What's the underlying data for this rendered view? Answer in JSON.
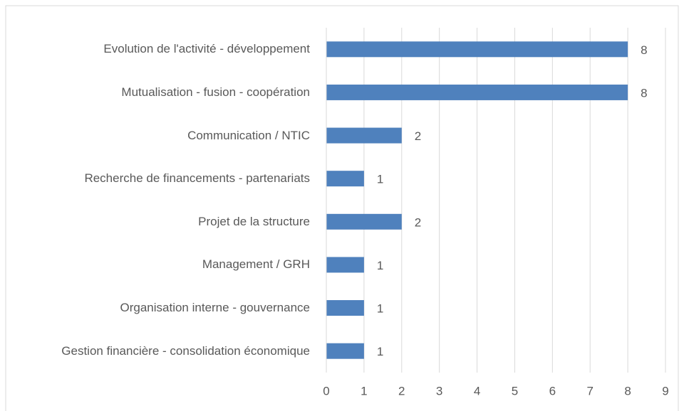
{
  "chart_data": {
    "type": "barh",
    "categories": [
      "Evolution de l'activité - développement",
      "Mutualisation - fusion - coopération",
      "Communication / NTIC",
      "Recherche de financements - partenariats",
      "Projet de la structure",
      "Management / GRH",
      "Organisation interne - gouvernance",
      "Gestion financière - consolidation économique"
    ],
    "values": [
      8,
      8,
      2,
      1,
      2,
      1,
      1,
      1
    ],
    "color": "#4f81bd",
    "xlim": [
      0,
      9
    ],
    "xticks": [
      0,
      1,
      2,
      3,
      4,
      5,
      6,
      7,
      8,
      9
    ],
    "grid": true
  }
}
